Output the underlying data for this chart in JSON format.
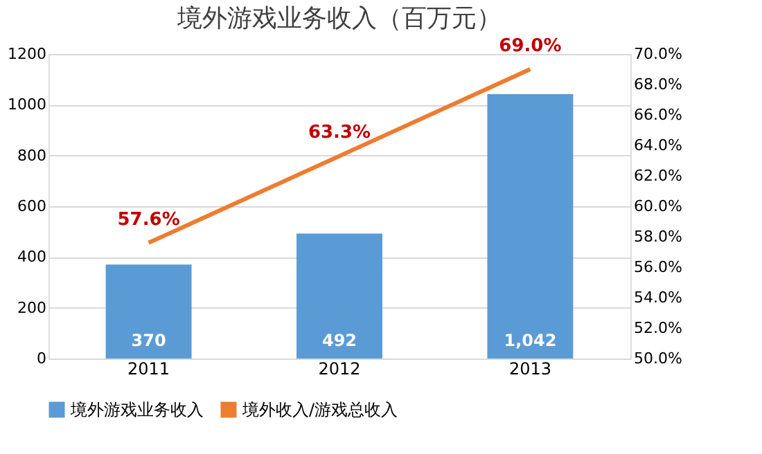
{
  "chart_data": {
    "type": "bar",
    "title": "境外游戏业务收入（百万元）",
    "categories": [
      "2011",
      "2012",
      "2013"
    ],
    "series": [
      {
        "name": "境外游戏业务收入",
        "color": "#5b9bd5",
        "values": [
          370,
          492,
          1042
        ],
        "value_labels": [
          "370",
          "492",
          "1,042"
        ]
      },
      {
        "name": "境外收入/游戏总收入",
        "type": "line",
        "axis": "y2",
        "color": "#ed7d31",
        "values": [
          57.6,
          63.3,
          69.0
        ],
        "value_labels": [
          "57.6%",
          "63.3%",
          "69.0%"
        ]
      }
    ],
    "ylim": [
      0,
      1200
    ],
    "yticks": [
      0,
      200,
      400,
      600,
      800,
      1000,
      1200
    ],
    "y2lim": [
      50,
      70
    ],
    "y2ticks": [
      {
        "value": 50,
        "label": "50.0%"
      },
      {
        "value": 52,
        "label": "52.0%"
      },
      {
        "value": 54,
        "label": "54.0%"
      },
      {
        "value": 56,
        "label": "56.0%"
      },
      {
        "value": 58,
        "label": "58.0%"
      },
      {
        "value": 60,
        "label": "60.0%"
      },
      {
        "value": 62,
        "label": "62.0%"
      },
      {
        "value": 64,
        "label": "64.0%"
      },
      {
        "value": 66,
        "label": "66.0%"
      },
      {
        "value": 68,
        "label": "68.0%"
      },
      {
        "value": 70,
        "label": "70.0%"
      }
    ],
    "grid": "y",
    "legend": "bottom",
    "marker": "none",
    "line_style": "solid"
  }
}
